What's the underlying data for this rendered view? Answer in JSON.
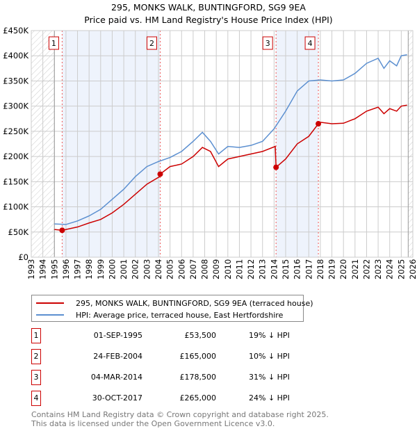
{
  "chart_data": {
    "type": "line",
    "title": "295, MONKS WALK, BUNTINGFORD, SG9 9EA",
    "subtitle": "Price paid vs. HM Land Registry's House Price Index (HPI)",
    "xlim": [
      1993,
      2026
    ],
    "ylim": [
      0,
      450000
    ],
    "yticks": [
      {
        "v": 0,
        "label": "£0"
      },
      {
        "v": 50000,
        "label": "£50K"
      },
      {
        "v": 100000,
        "label": "£100K"
      },
      {
        "v": 150000,
        "label": "£150K"
      },
      {
        "v": 200000,
        "label": "£200K"
      },
      {
        "v": 250000,
        "label": "£250K"
      },
      {
        "v": 300000,
        "label": "£300K"
      },
      {
        "v": 350000,
        "label": "£350K"
      },
      {
        "v": 400000,
        "label": "£400K"
      },
      {
        "v": 450000,
        "label": "£450K"
      }
    ],
    "xticks": [
      "1993",
      "1994",
      "1995",
      "1996",
      "1997",
      "1998",
      "1999",
      "2000",
      "2001",
      "2002",
      "2003",
      "2004",
      "2005",
      "2006",
      "2007",
      "2008",
      "2009",
      "2010",
      "2011",
      "2012",
      "2013",
      "2014",
      "2015",
      "2016",
      "2017",
      "2018",
      "2019",
      "2020",
      "2021",
      "2022",
      "2023",
      "2024",
      "2025",
      "2026"
    ],
    "grid": true,
    "colors": {
      "price": "#cc0000",
      "hpi": "#5b8fd0",
      "band": "#eef3fc",
      "marker": "#cc0000"
    },
    "hatched_ranges": [
      [
        1993,
        1995
      ],
      [
        2025.6,
        2026
      ]
    ],
    "shaded_ranges": [
      [
        1995.67,
        2004.15
      ],
      [
        2014.17,
        2017.83
      ]
    ],
    "series": [
      {
        "name": "295, MONKS WALK, BUNTINGFORD, SG9 9EA (terraced house)",
        "color": "#cc0000",
        "x": [
          1995,
          1995.67,
          1996,
          1997,
          1998,
          1999,
          2000,
          2001,
          2002,
          2003,
          2004.1,
          2004.15,
          2005,
          2006,
          2007,
          2007.8,
          2008.5,
          2009.2,
          2010,
          2011,
          2012,
          2013,
          2014.1,
          2014.17,
          2015,
          2016,
          2017,
          2017.83,
          2018,
          2019,
          2020,
          2021,
          2022,
          2023,
          2023.5,
          2024,
          2024.6,
          2025,
          2025.5
        ],
        "y": [
          55000,
          53500,
          55000,
          60000,
          68000,
          75000,
          88000,
          105000,
          125000,
          145000,
          160000,
          165000,
          180000,
          185000,
          200000,
          218000,
          210000,
          180000,
          195000,
          200000,
          205000,
          210000,
          220000,
          178500,
          195000,
          225000,
          240000,
          265000,
          268000,
          265000,
          266000,
          275000,
          290000,
          298000,
          285000,
          295000,
          290000,
          300000,
          302000
        ]
      },
      {
        "name": "HPI: Average price, terraced house, East Hertfordshire",
        "color": "#5b8fd0",
        "x": [
          1995,
          1996,
          1997,
          1998,
          1999,
          2000,
          2001,
          2002,
          2003,
          2004,
          2005,
          2006,
          2007,
          2007.8,
          2008.5,
          2009.2,
          2010,
          2011,
          2012,
          2013,
          2014,
          2015,
          2016,
          2017,
          2018,
          2019,
          2020,
          2021,
          2022,
          2023,
          2023.5,
          2024,
          2024.6,
          2025,
          2025.5
        ],
        "y": [
          66000,
          65000,
          72000,
          82000,
          95000,
          115000,
          135000,
          160000,
          180000,
          190000,
          198000,
          210000,
          230000,
          248000,
          230000,
          205000,
          220000,
          218000,
          222000,
          230000,
          255000,
          290000,
          330000,
          350000,
          352000,
          350000,
          352000,
          365000,
          385000,
          395000,
          375000,
          390000,
          380000,
          400000,
          402000
        ]
      }
    ],
    "sales": [
      {
        "n": "1",
        "x": 1995.67,
        "y": 53500
      },
      {
        "n": "2",
        "x": 2004.15,
        "y": 165000
      },
      {
        "n": "3",
        "x": 2014.17,
        "y": 178500
      },
      {
        "n": "4",
        "x": 2017.83,
        "y": 265000
      }
    ]
  },
  "header": {
    "title": "295, MONKS WALK, BUNTINGFORD, SG9 9EA",
    "subtitle": "Price paid vs. HM Land Registry's House Price Index (HPI)"
  },
  "legend": [
    "295, MONKS WALK, BUNTINGFORD, SG9 9EA (terraced house)",
    "HPI: Average price, terraced house, East Hertfordshire"
  ],
  "table": [
    {
      "n": "1",
      "date": "01-SEP-1995",
      "price": "£53,500",
      "hpi": "19% ↓ HPI"
    },
    {
      "n": "2",
      "date": "24-FEB-2004",
      "price": "£165,000",
      "hpi": "10% ↓ HPI"
    },
    {
      "n": "3",
      "date": "04-MAR-2014",
      "price": "£178,500",
      "hpi": "31% ↓ HPI"
    },
    {
      "n": "4",
      "date": "30-OCT-2017",
      "price": "£265,000",
      "hpi": "24% ↓ HPI"
    }
  ],
  "footer": [
    "Contains HM Land Registry data © Crown copyright and database right 2025.",
    "This data is licensed under the Open Government Licence v3.0."
  ]
}
